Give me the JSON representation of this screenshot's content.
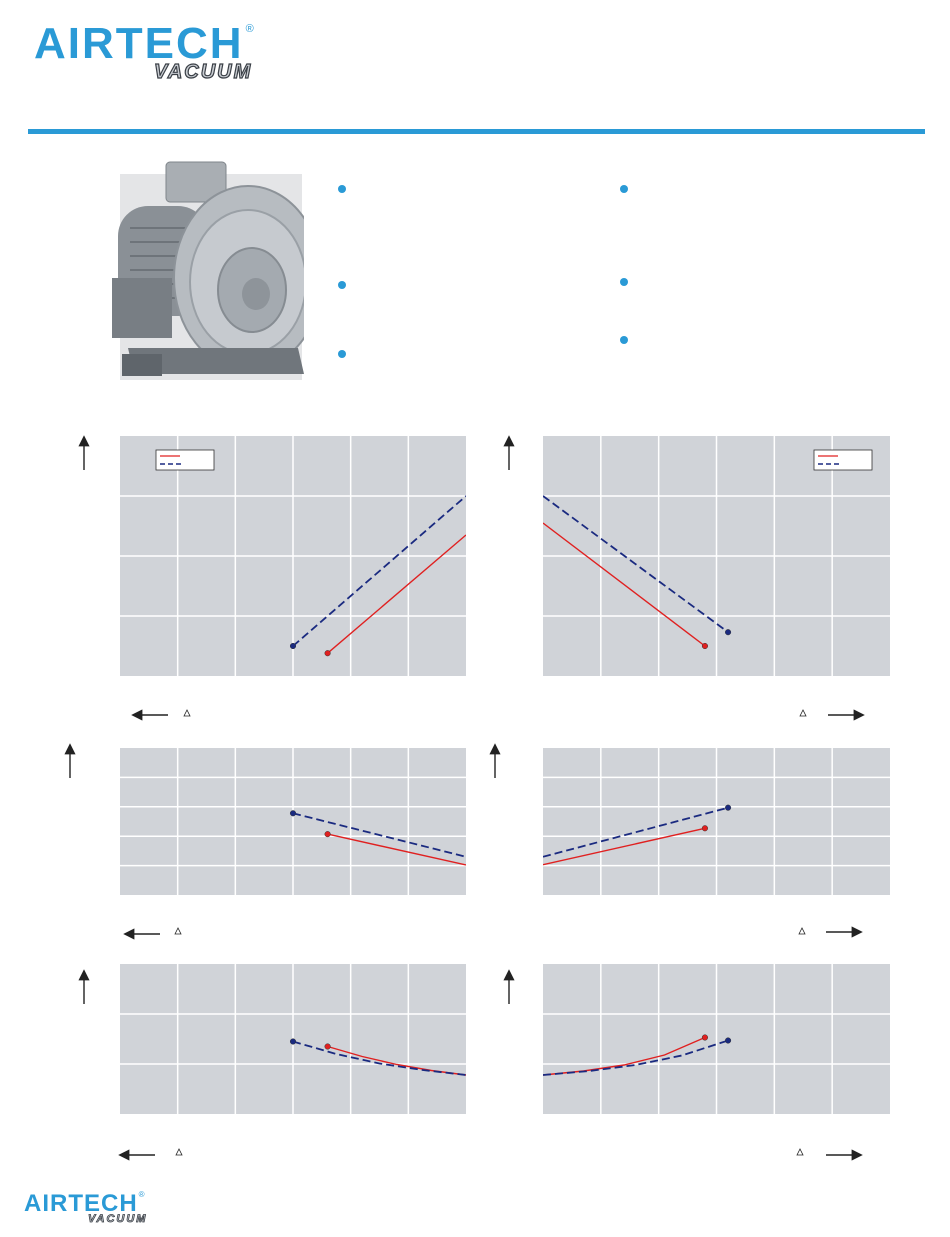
{
  "brand": {
    "name": "AIRTECH",
    "sub": "VACUUM",
    "registered": "®"
  },
  "features": {
    "bullet_count": 6,
    "bullet_color": "#2a9ad6"
  },
  "colors": {
    "accent": "#2a9ad6",
    "series_solid": "#e02020",
    "series_dashed": "#1a2a80",
    "chart_bg": "#d0d3d8",
    "grid": "#ffffff"
  },
  "icons": [
    "vacuum-pump-photo",
    "bullet-dot",
    "y-axis-up-arrow",
    "x-axis-left-arrow",
    "x-axis-right-arrow",
    "delta-symbol"
  ],
  "footer": {
    "brand": "AIRTECH",
    "sub": "VACUUM",
    "registered": "®"
  },
  "chart_data": [
    {
      "type": "line",
      "panel": "top-left",
      "legend": "top-left",
      "grid": true,
      "xlim": [
        0,
        6
      ],
      "ylim": [
        0,
        4
      ],
      "series": [
        {
          "style": "solid",
          "color": "#e02020",
          "points": [
            [
              3.6,
              0.38
            ],
            [
              6.0,
              2.35
            ]
          ]
        },
        {
          "style": "dashed",
          "color": "#1a2a80",
          "points": [
            [
              3.0,
              0.5
            ],
            [
              6.0,
              3.0
            ]
          ]
        }
      ]
    },
    {
      "type": "line",
      "panel": "top-right",
      "legend": "top-right",
      "grid": true,
      "xlim": [
        0,
        6
      ],
      "ylim": [
        0,
        4
      ],
      "series": [
        {
          "style": "solid",
          "color": "#e02020",
          "points": [
            [
              0.0,
              2.55
            ],
            [
              2.8,
              0.5
            ]
          ]
        },
        {
          "style": "dashed",
          "color": "#1a2a80",
          "points": [
            [
              0.0,
              3.0
            ],
            [
              3.2,
              0.73
            ]
          ]
        }
      ]
    },
    {
      "type": "line",
      "panel": "middle-left",
      "grid": true,
      "xlim": [
        0,
        6
      ],
      "ylim": [
        0,
        5
      ],
      "series": [
        {
          "style": "solid",
          "color": "#e02020",
          "points": [
            [
              3.6,
              2.07
            ],
            [
              6.0,
              1.02
            ]
          ]
        },
        {
          "style": "dashed",
          "color": "#1a2a80",
          "points": [
            [
              3.0,
              2.78
            ],
            [
              6.0,
              1.3
            ]
          ]
        }
      ]
    },
    {
      "type": "line",
      "panel": "middle-right",
      "grid": true,
      "xlim": [
        0,
        6
      ],
      "ylim": [
        0,
        5
      ],
      "series": [
        {
          "style": "solid",
          "color": "#e02020",
          "points": [
            [
              0.0,
              1.03
            ],
            [
              2.8,
              2.27
            ]
          ]
        },
        {
          "style": "dashed",
          "color": "#1a2a80",
          "points": [
            [
              0.0,
              1.3
            ],
            [
              3.2,
              2.97
            ]
          ]
        }
      ]
    },
    {
      "type": "line",
      "panel": "bottom-left",
      "grid": true,
      "xlim": [
        0,
        6
      ],
      "ylim": [
        0,
        3
      ],
      "series": [
        {
          "style": "solid",
          "color": "#e02020",
          "points": [
            [
              3.6,
              1.35
            ],
            [
              4.2,
              1.15
            ],
            [
              4.8,
              0.99
            ],
            [
              5.4,
              0.87
            ],
            [
              6.0,
              0.78
            ]
          ]
        },
        {
          "style": "dashed",
          "color": "#1a2a80",
          "points": [
            [
              3.0,
              1.45
            ],
            [
              3.75,
              1.2
            ],
            [
              4.5,
              1.01
            ],
            [
              5.25,
              0.88
            ],
            [
              6.0,
              0.78
            ]
          ]
        }
      ]
    },
    {
      "type": "line",
      "panel": "bottom-right",
      "grid": true,
      "xlim": [
        0,
        6
      ],
      "ylim": [
        0,
        3
      ],
      "series": [
        {
          "style": "solid",
          "color": "#e02020",
          "points": [
            [
              0.0,
              0.78
            ],
            [
              0.7,
              0.86
            ],
            [
              1.4,
              0.98
            ],
            [
              2.1,
              1.18
            ],
            [
              2.8,
              1.53
            ]
          ]
        },
        {
          "style": "dashed",
          "color": "#1a2a80",
          "points": [
            [
              0.0,
              0.78
            ],
            [
              0.8,
              0.86
            ],
            [
              1.6,
              0.98
            ],
            [
              2.4,
              1.17
            ],
            [
              3.2,
              1.47
            ]
          ]
        }
      ]
    }
  ]
}
